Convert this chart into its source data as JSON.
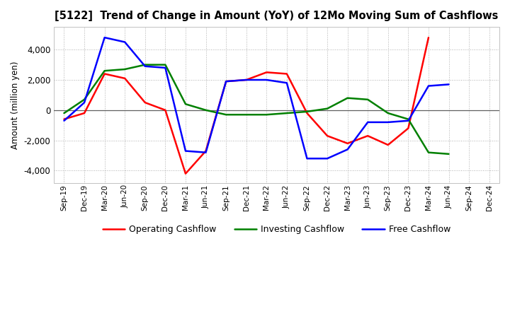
{
  "title": "[5122]  Trend of Change in Amount (YoY) of 12Mo Moving Sum of Cashflows",
  "ylabel": "Amount (million yen)",
  "x_labels": [
    "Sep-19",
    "Dec-19",
    "Mar-20",
    "Jun-20",
    "Sep-20",
    "Dec-20",
    "Mar-21",
    "Jun-21",
    "Sep-21",
    "Dec-21",
    "Mar-22",
    "Jun-22",
    "Sep-22",
    "Dec-22",
    "Mar-23",
    "Jun-23",
    "Sep-23",
    "Dec-23",
    "Mar-24",
    "Jun-24",
    "Sep-24",
    "Dec-24"
  ],
  "operating": [
    -600,
    -200,
    2400,
    2100,
    500,
    0,
    -4200,
    -2700,
    1900,
    2000,
    2500,
    2400,
    -200,
    -1700,
    -2200,
    -1700,
    -2300,
    -1200,
    4800,
    null,
    null,
    null
  ],
  "investing": [
    -200,
    700,
    2600,
    2700,
    3000,
    3000,
    400,
    0,
    -300,
    -300,
    -300,
    -200,
    -100,
    100,
    800,
    700,
    -200,
    -600,
    -2800,
    -2900,
    null,
    null
  ],
  "free": [
    -700,
    500,
    4800,
    4500,
    2900,
    2800,
    -2700,
    -2800,
    1900,
    2000,
    2000,
    1800,
    -3200,
    -3200,
    -2600,
    -800,
    -800,
    -700,
    1600,
    1700,
    null,
    null
  ],
  "operating_color": "#ff0000",
  "investing_color": "#008000",
  "free_color": "#0000ff",
  "ylim": [
    -4800,
    5500
  ],
  "yticks": [
    -4000,
    -2000,
    0,
    2000,
    4000
  ],
  "bg_color": "#ffffff",
  "grid_color": "#b0b0b0",
  "grid_linestyle": "dotted"
}
